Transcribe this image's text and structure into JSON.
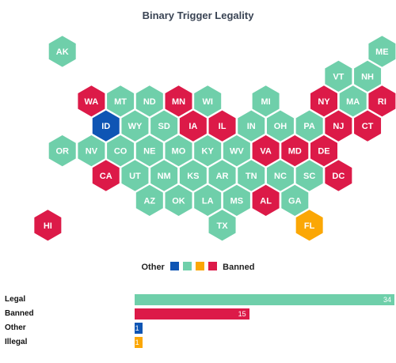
{
  "title": "Binary Trigger Legality",
  "colors": {
    "Legal": "#6fcfaa",
    "Banned": "#dc1a48",
    "Other": "#0f55b4",
    "Illegal": "#fba705"
  },
  "legend": {
    "left_label": "Other",
    "right_label": "Banned"
  },
  "states": [
    {
      "code": "AK",
      "row": 0,
      "col": 1,
      "status": "Legal"
    },
    {
      "code": "ME",
      "row": 0,
      "col": 12,
      "status": "Legal"
    },
    {
      "code": "VT",
      "row": 1,
      "col": 10,
      "status": "Legal"
    },
    {
      "code": "NH",
      "row": 1,
      "col": 11,
      "status": "Legal"
    },
    {
      "code": "WA",
      "row": 2,
      "col": 2,
      "status": "Banned"
    },
    {
      "code": "MT",
      "row": 2,
      "col": 3,
      "status": "Legal"
    },
    {
      "code": "ND",
      "row": 2,
      "col": 4,
      "status": "Legal"
    },
    {
      "code": "MN",
      "row": 2,
      "col": 5,
      "status": "Banned"
    },
    {
      "code": "WI",
      "row": 2,
      "col": 6,
      "status": "Legal"
    },
    {
      "code": "MI",
      "row": 2,
      "col": 8,
      "status": "Legal"
    },
    {
      "code": "NY",
      "row": 2,
      "col": 10,
      "status": "Banned"
    },
    {
      "code": "MA",
      "row": 2,
      "col": 11,
      "status": "Legal"
    },
    {
      "code": "RI",
      "row": 2,
      "col": 12,
      "status": "Banned"
    },
    {
      "code": "ID",
      "row": 3,
      "col": 2,
      "status": "Other"
    },
    {
      "code": "WY",
      "row": 3,
      "col": 3,
      "status": "Legal"
    },
    {
      "code": "SD",
      "row": 3,
      "col": 4,
      "status": "Legal"
    },
    {
      "code": "IA",
      "row": 3,
      "col": 5,
      "status": "Banned"
    },
    {
      "code": "IL",
      "row": 3,
      "col": 6,
      "status": "Banned"
    },
    {
      "code": "IN",
      "row": 3,
      "col": 7,
      "status": "Legal"
    },
    {
      "code": "OH",
      "row": 3,
      "col": 8,
      "status": "Legal"
    },
    {
      "code": "PA",
      "row": 3,
      "col": 9,
      "status": "Legal"
    },
    {
      "code": "NJ",
      "row": 3,
      "col": 10,
      "status": "Banned"
    },
    {
      "code": "CT",
      "row": 3,
      "col": 11,
      "status": "Banned"
    },
    {
      "code": "OR",
      "row": 4,
      "col": 1,
      "status": "Legal"
    },
    {
      "code": "NV",
      "row": 4,
      "col": 2,
      "status": "Legal"
    },
    {
      "code": "CO",
      "row": 4,
      "col": 3,
      "status": "Legal"
    },
    {
      "code": "NE",
      "row": 4,
      "col": 4,
      "status": "Legal"
    },
    {
      "code": "MO",
      "row": 4,
      "col": 5,
      "status": "Legal"
    },
    {
      "code": "KY",
      "row": 4,
      "col": 6,
      "status": "Legal"
    },
    {
      "code": "WV",
      "row": 4,
      "col": 7,
      "status": "Legal"
    },
    {
      "code": "VA",
      "row": 4,
      "col": 8,
      "status": "Banned"
    },
    {
      "code": "MD",
      "row": 4,
      "col": 9,
      "status": "Banned"
    },
    {
      "code": "DE",
      "row": 4,
      "col": 10,
      "status": "Banned"
    },
    {
      "code": "CA",
      "row": 5,
      "col": 2,
      "status": "Banned"
    },
    {
      "code": "UT",
      "row": 5,
      "col": 3,
      "status": "Legal"
    },
    {
      "code": "NM",
      "row": 5,
      "col": 4,
      "status": "Legal"
    },
    {
      "code": "KS",
      "row": 5,
      "col": 5,
      "status": "Legal"
    },
    {
      "code": "AR",
      "row": 5,
      "col": 6,
      "status": "Legal"
    },
    {
      "code": "TN",
      "row": 5,
      "col": 7,
      "status": "Legal"
    },
    {
      "code": "NC",
      "row": 5,
      "col": 8,
      "status": "Legal"
    },
    {
      "code": "SC",
      "row": 5,
      "col": 9,
      "status": "Legal"
    },
    {
      "code": "DC",
      "row": 5,
      "col": 10,
      "status": "Banned"
    },
    {
      "code": "AZ",
      "row": 6,
      "col": 4,
      "status": "Legal"
    },
    {
      "code": "OK",
      "row": 6,
      "col": 5,
      "status": "Legal"
    },
    {
      "code": "LA",
      "row": 6,
      "col": 6,
      "status": "Legal"
    },
    {
      "code": "MS",
      "row": 6,
      "col": 7,
      "status": "Legal"
    },
    {
      "code": "AL",
      "row": 6,
      "col": 8,
      "status": "Banned"
    },
    {
      "code": "GA",
      "row": 6,
      "col": 9,
      "status": "Legal"
    },
    {
      "code": "HI",
      "row": 7,
      "col": 0,
      "status": "Banned"
    },
    {
      "code": "TX",
      "row": 7,
      "col": 6,
      "status": "Legal"
    },
    {
      "code": "FL",
      "row": 7,
      "col": 9,
      "status": "Illegal"
    }
  ],
  "bars": [
    {
      "label": "Legal",
      "value": 34,
      "status": "Legal"
    },
    {
      "label": "Banned",
      "value": 15,
      "status": "Banned"
    },
    {
      "label": "Other",
      "value": 1,
      "status": "Other"
    },
    {
      "label": "Illegal",
      "value": 1,
      "status": "Illegal"
    }
  ],
  "bar_max": 34
}
